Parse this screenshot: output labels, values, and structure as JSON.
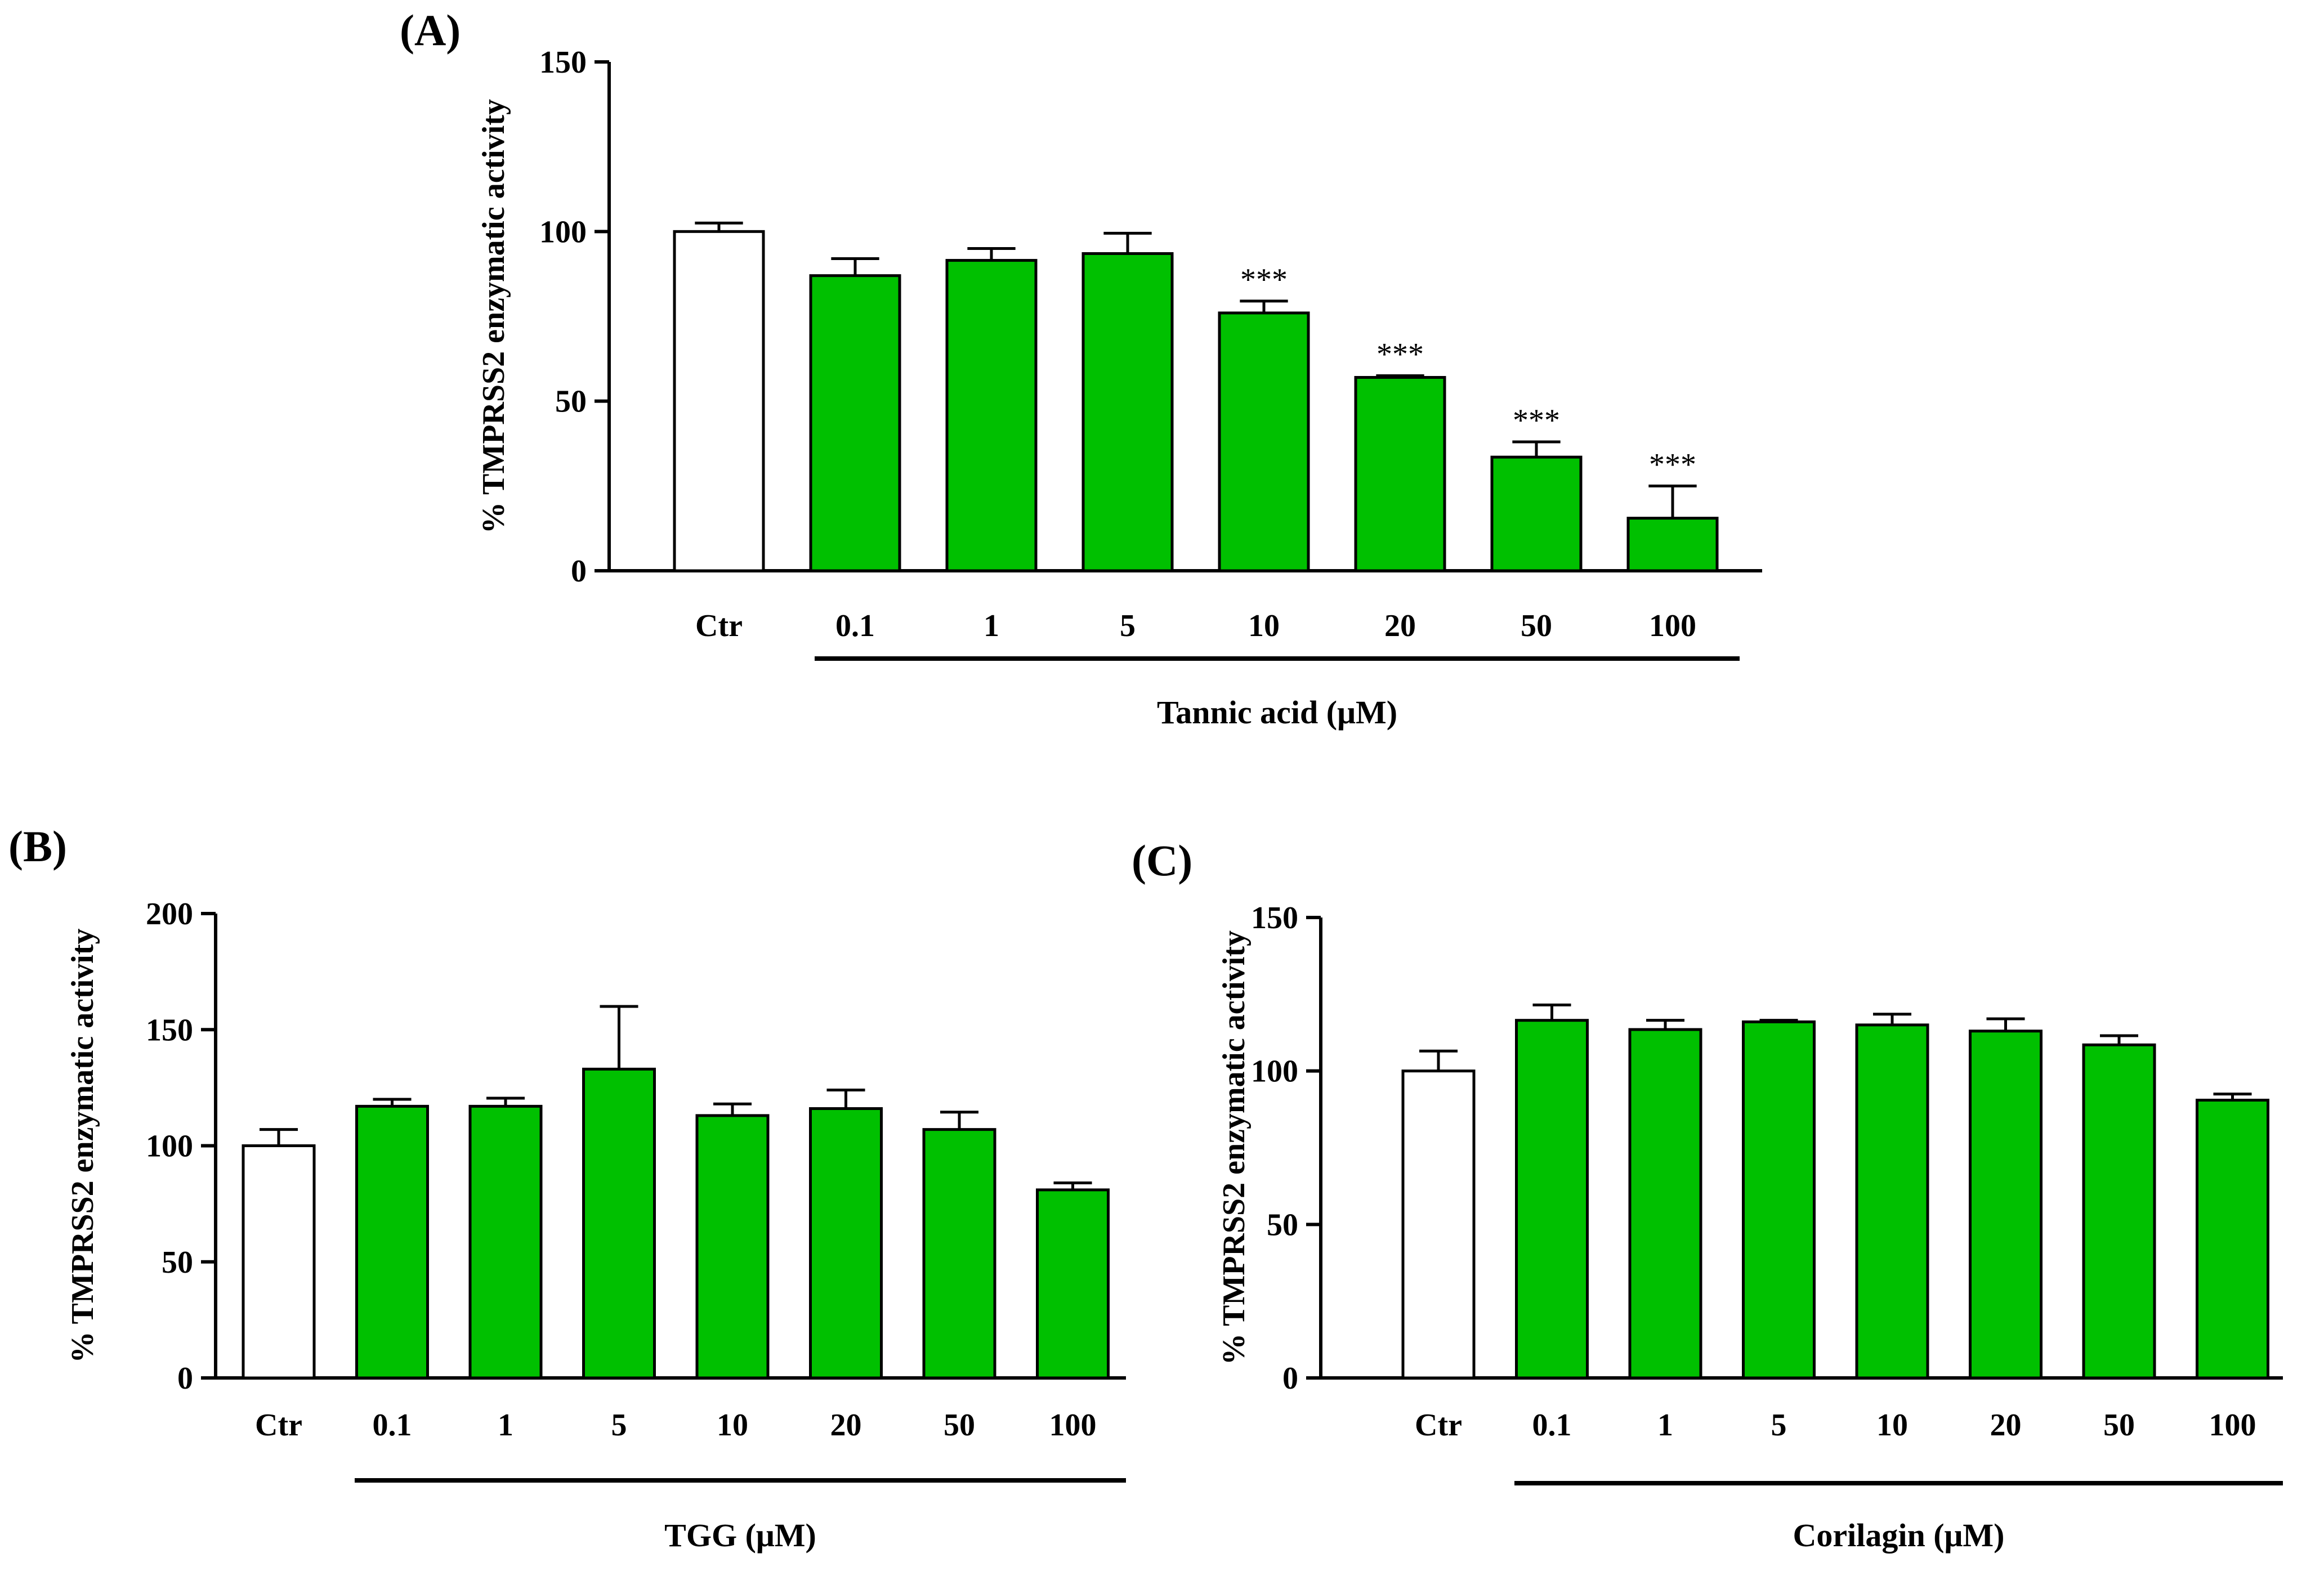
{
  "colors": {
    "control_fill": "#ffffff",
    "treatment_fill": "#00c000",
    "stroke": "#000000"
  },
  "chart_data": [
    {
      "type": "bar",
      "panel_label": "(A)",
      "title": "",
      "ylabel": "%  TMPRSS2 enzymatic activity",
      "group_label": "Tannic acid (μM)",
      "categories": [
        "Ctr",
        "0.1",
        "1",
        "5",
        "10",
        "20",
        "50",
        "100"
      ],
      "values": [
        100,
        87,
        91.5,
        93.5,
        76,
        57,
        33.5,
        15.5
      ],
      "errors": [
        2.5,
        5,
        3.5,
        6,
        3.5,
        0.5,
        4.5,
        9.5
      ],
      "significance": [
        "",
        "",
        "",
        "",
        "***",
        "***",
        "***",
        "***"
      ],
      "ylim": [
        0,
        150
      ],
      "yticks": [
        0,
        50,
        100,
        150
      ],
      "grid": false
    },
    {
      "type": "bar",
      "panel_label": "(B)",
      "title": "",
      "ylabel": "%  TMPRSS2 enzymatic activity",
      "group_label": "TGG (μM)",
      "categories": [
        "Ctr",
        "0.1",
        "1",
        "5",
        "10",
        "20",
        "50",
        "100"
      ],
      "values": [
        100,
        117,
        117,
        133,
        113,
        116,
        107,
        81
      ],
      "errors": [
        7,
        3,
        3.5,
        27,
        5,
        8,
        7.5,
        3
      ],
      "significance": [
        "",
        "",
        "",
        "",
        "",
        "",
        "",
        ""
      ],
      "ylim": [
        0,
        200
      ],
      "yticks": [
        0,
        50,
        100,
        150,
        200
      ],
      "grid": false
    },
    {
      "type": "bar",
      "panel_label": "(C)",
      "title": "",
      "ylabel": "%  TMPRSS2 enzymatic activity",
      "group_label": "Corilagin (μM)",
      "categories": [
        "Ctr",
        "0.1",
        "1",
        "5",
        "10",
        "20",
        "50",
        "100"
      ],
      "values": [
        100,
        116.5,
        113.5,
        116,
        115,
        113,
        108.5,
        90.5
      ],
      "errors": [
        6.5,
        5,
        3,
        0.5,
        3.5,
        4,
        3,
        2
      ],
      "significance": [
        "",
        "",
        "",
        "",
        "",
        "",
        "",
        ""
      ],
      "ylim": [
        0,
        150
      ],
      "yticks": [
        0,
        50,
        100,
        150
      ],
      "grid": false
    }
  ]
}
